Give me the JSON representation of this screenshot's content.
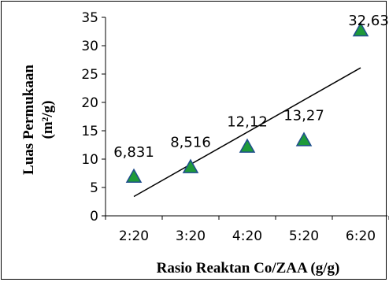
{
  "chart_data": {
    "type": "scatter",
    "categories": [
      "2:20",
      "3:20",
      "4:20",
      "5:20",
      "6:20"
    ],
    "series": [
      {
        "values": [
          6.831,
          8.516,
          12.12,
          13.27,
          32.63
        ],
        "labels": [
          "6,831",
          "8,516",
          "12,12",
          "13,27",
          "32,63"
        ]
      }
    ],
    "trendline": {
      "type": "linear",
      "start": 3.4,
      "end": 26.1
    },
    "xlabel": "Rasio Reaktan Co/ZAA (g/g)",
    "ylabel": "Luas Permukaan",
    "ylabel_unit": "(m²/g)",
    "ylim": [
      0,
      35
    ],
    "yticks": [
      "0",
      "5",
      "10",
      "15",
      "20",
      "25",
      "30",
      "35"
    ],
    "grid": false,
    "legend": "none",
    "marker_fill": "#1e9a3a",
    "marker_stroke": "#1f4e8c"
  }
}
